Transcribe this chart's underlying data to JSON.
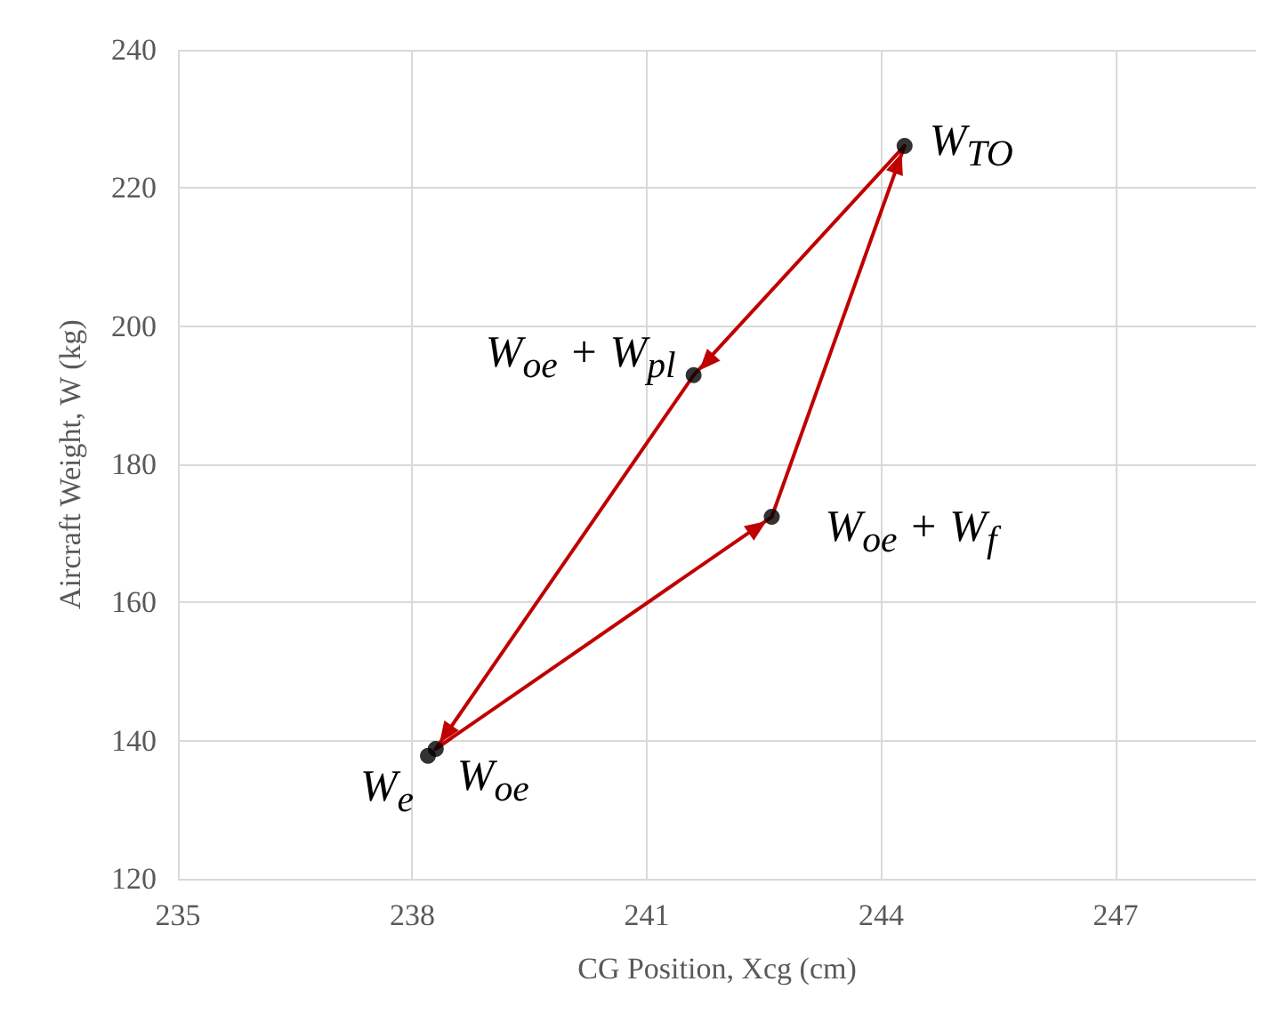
{
  "chart_data": {
    "type": "scatter",
    "xlabel": "CG Position, Xcg (cm)",
    "ylabel": "Aircraft Weight, W (kg)",
    "x": [
      244.3,
      241.6,
      242.6,
      238.3,
      238.2
    ],
    "values": [
      226.1,
      192.9,
      172.4,
      138.8,
      137.8
    ],
    "color": "#000000",
    "marker": "circle",
    "series": [
      {
        "type": "line",
        "color": "#c00000",
        "x": [
          238.3,
          242.6
        ],
        "values": [
          138.8,
          172.4
        ],
        "marker": "none",
        "line_style": "solid"
      },
      {
        "type": "line",
        "color": "#c00000",
        "x": [
          242.6,
          244.3
        ],
        "values": [
          172.4,
          226.1
        ],
        "marker": "none",
        "line_style": "solid"
      },
      {
        "type": "line",
        "color": "#c00000",
        "x": [
          244.3,
          241.6
        ],
        "values": [
          226.1,
          192.9
        ],
        "marker": "none",
        "line_style": "solid"
      },
      {
        "type": "line",
        "color": "#c00000",
        "x": [
          241.6,
          238.3
        ],
        "values": [
          192.9,
          138.8
        ],
        "marker": "none",
        "line_style": "solid"
      }
    ],
    "annotations": [
      {
        "text": "W$_{TO}$",
        "x": 244.3,
        "y": 226.1
      },
      {
        "text": "W$_{oe}$ + W$_{pl}$",
        "x": 241.6,
        "y": 192.9
      },
      {
        "text": "W$_{oe}$ + W$_{f}$",
        "x": 242.6,
        "y": 172.4
      },
      {
        "text": "W$_{oe}$",
        "x": 238.3,
        "y": 138.8
      },
      {
        "text": "W$_{e}$",
        "x": 238.2,
        "y": 137.8
      }
    ],
    "xlim": [
      235,
      248.8
    ],
    "xticks": [
      235,
      238,
      241,
      244,
      247
    ],
    "ylim": [
      120,
      240
    ],
    "yticks": [
      120,
      140,
      160,
      180,
      200,
      220,
      240
    ],
    "grid": true
  }
}
